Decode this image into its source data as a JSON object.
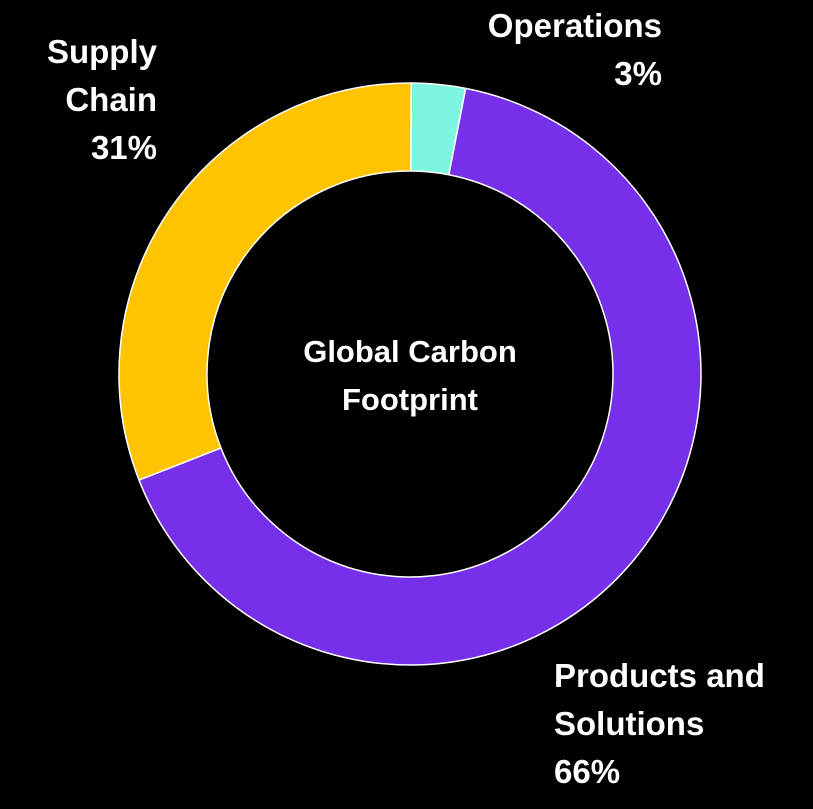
{
  "chart_data": {
    "type": "pie",
    "variant": "donut",
    "center_title": [
      "Global Carbon",
      "Footprint"
    ],
    "slices": [
      {
        "name": "Operations",
        "value": 3,
        "label_lines": [
          "Operations",
          "3%"
        ],
        "color": "#7EF5DE"
      },
      {
        "name": "Products and Solutions",
        "value": 66,
        "label_lines": [
          "Products and",
          "Solutions",
          "66%"
        ],
        "color": "#7630EA"
      },
      {
        "name": "Supply Chain",
        "value": 31,
        "label_lines": [
          "Supply",
          "Chain",
          "31%"
        ],
        "color": "#FFC300"
      }
    ],
    "start_angle": "top",
    "direction": "clockwise"
  },
  "colors": {
    "background": "#000000",
    "text": "#FFFFFF",
    "slice_border": "#FFFFFF"
  }
}
